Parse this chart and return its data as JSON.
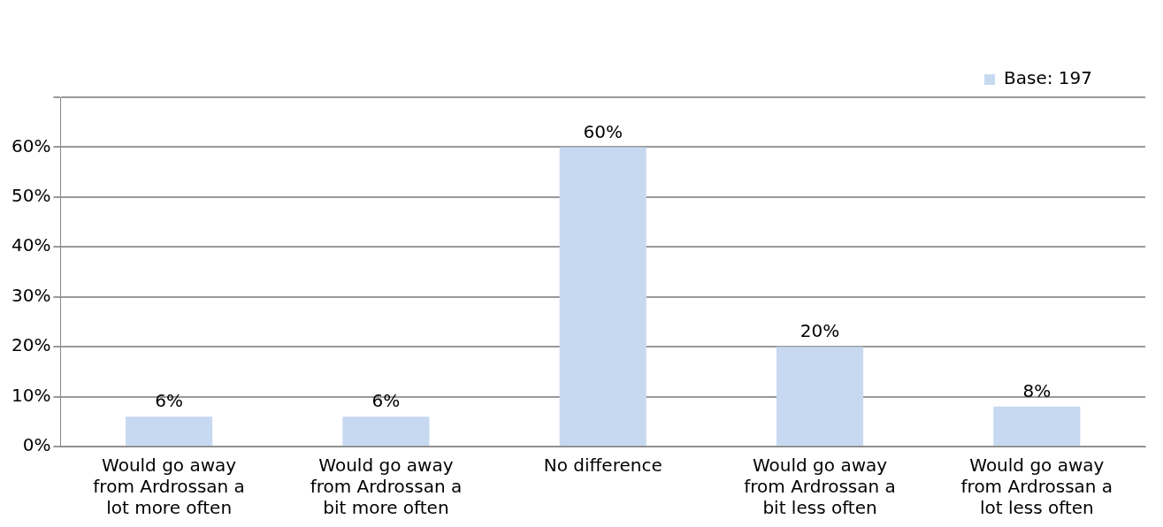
{
  "chart_data": {
    "type": "bar",
    "categories": [
      "Would go away from Ardrossan a lot more often",
      "Would go away from Ardrossan a bit more often",
      "No difference",
      "Would go away from Ardrossan a bit less often",
      "Would go away from Ardrossan a lot less often"
    ],
    "series": [
      {
        "name": "Base: 197",
        "color": "#c6d9f1",
        "values": [
          6,
          6,
          60,
          20,
          8
        ],
        "value_labels": [
          "6%",
          "6%",
          "60%",
          "20%",
          "8%"
        ]
      }
    ],
    "ylim": [
      0,
      70
    ],
    "yticks": [
      {
        "value": 0,
        "label": "0%"
      },
      {
        "value": 10,
        "label": "10%"
      },
      {
        "value": 20,
        "label": "20%"
      },
      {
        "value": 30,
        "label": "30%"
      },
      {
        "value": 40,
        "label": "40%"
      },
      {
        "value": 50,
        "label": "50%"
      },
      {
        "value": 60,
        "label": "60%"
      },
      {
        "value": 70,
        "label": null
      }
    ],
    "grid": "y",
    "legend": "top right"
  }
}
